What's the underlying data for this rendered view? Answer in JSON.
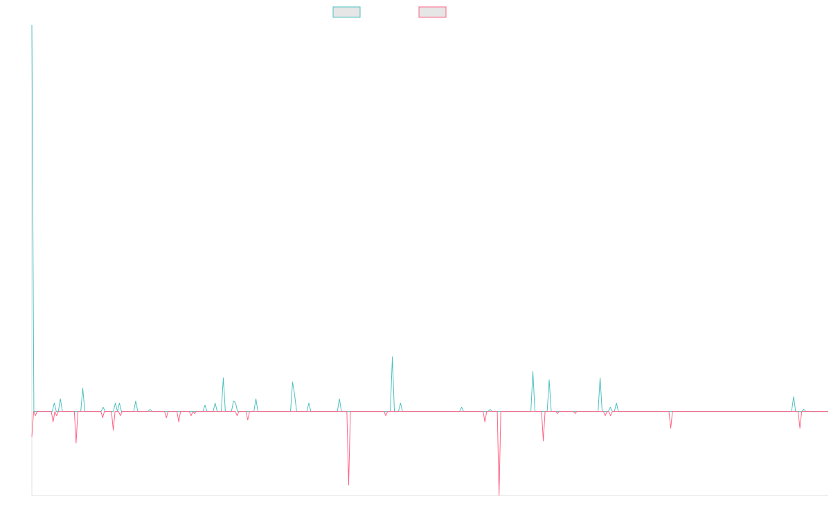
{
  "colors": {
    "series_a": "#4bc0c0",
    "series_b": "#ff6384",
    "legend_fill": "#e6e6e6",
    "axis": "#e0e0e0"
  },
  "chart_data": {
    "type": "line",
    "title": "",
    "xlabel": "",
    "ylabel": "",
    "legend": "top-center",
    "grid": false,
    "ylim": [
      -20,
      92
    ],
    "series": [
      {
        "values": [
          92,
          0,
          0,
          0,
          0,
          0,
          0,
          0,
          0,
          0,
          0,
          2,
          0,
          0,
          3,
          0,
          0,
          0,
          0,
          0,
          0,
          0,
          0,
          0,
          0,
          5.5,
          0,
          0,
          0,
          0,
          0,
          0,
          0,
          0,
          0,
          1,
          0,
          0,
          0,
          0,
          0,
          2,
          0,
          2,
          0,
          0,
          0,
          0,
          0,
          0,
          0,
          2.5,
          0,
          0,
          0,
          0,
          0,
          0,
          0.5,
          0,
          0,
          0,
          0,
          0,
          0,
          0,
          0,
          0,
          0,
          0,
          0,
          0,
          0,
          0,
          0,
          0,
          0,
          0,
          0,
          0,
          0,
          0,
          0,
          0,
          0,
          1.5,
          0,
          0,
          0,
          0,
          2,
          0,
          0,
          0,
          8,
          0,
          0,
          0,
          0,
          2.5,
          2,
          0,
          0,
          0,
          0,
          0,
          0,
          0,
          0,
          0,
          3,
          0,
          0,
          0,
          0,
          0,
          0,
          0,
          0,
          0,
          0,
          0,
          0,
          0,
          0,
          0,
          0,
          0,
          7,
          4,
          0,
          0,
          0,
          0,
          0,
          0,
          2,
          0,
          0,
          0,
          0,
          0,
          0,
          0,
          0,
          0,
          0,
          0,
          0,
          0,
          0,
          3,
          0,
          0,
          0,
          0,
          0,
          0,
          0,
          0,
          0,
          0,
          0,
          0,
          0,
          0,
          0,
          0,
          0,
          0,
          0,
          0,
          0,
          0,
          0,
          0,
          0,
          13,
          0,
          0,
          0,
          2,
          0,
          0,
          0,
          0,
          0,
          0,
          0,
          0,
          0,
          0,
          0,
          0,
          0,
          0,
          0,
          0,
          0,
          0,
          0,
          0,
          0,
          0,
          0,
          0,
          0,
          0,
          0,
          0,
          0,
          1,
          0,
          0,
          0,
          0,
          0,
          0,
          0,
          0,
          0,
          0,
          0,
          0,
          0,
          0.5,
          0,
          0,
          0,
          0,
          0,
          0,
          0,
          0,
          0,
          0,
          0,
          0,
          0,
          0,
          0,
          0,
          0,
          0,
          0,
          0,
          9.5,
          0,
          0,
          0,
          0,
          0,
          0,
          0,
          7.5,
          0,
          0,
          0,
          0,
          0,
          0,
          0,
          0,
          0,
          0,
          0,
          0,
          0,
          0,
          0,
          0,
          0,
          0,
          0,
          0,
          0,
          0,
          0,
          0,
          8,
          0,
          0,
          0,
          0,
          1,
          0,
          0,
          2,
          0,
          0,
          0,
          0,
          0,
          0,
          0,
          0,
          0,
          0,
          0,
          0,
          0,
          0,
          0,
          0,
          0,
          0,
          0,
          0,
          0,
          0,
          0,
          0,
          0,
          0,
          0,
          0,
          0,
          0,
          0,
          0,
          0,
          0,
          0,
          0,
          0,
          0,
          0,
          0,
          0,
          0,
          0,
          0,
          0,
          0,
          0,
          0,
          0,
          0,
          0,
          0,
          0,
          0,
          0,
          0,
          0,
          0,
          0,
          0,
          0,
          0,
          0,
          0,
          0,
          0,
          0,
          0,
          0,
          0,
          0,
          0,
          0,
          0,
          0,
          0,
          0,
          0,
          0,
          0,
          0,
          0,
          0,
          0,
          0,
          0,
          3.5,
          0,
          0,
          0,
          0,
          0.5,
          0,
          0,
          0,
          0,
          0,
          0,
          0,
          0,
          0,
          0,
          0,
          0
        ]
      },
      {
        "values": [
          -6,
          0,
          -1,
          0,
          0,
          0,
          0,
          0,
          0,
          0,
          0,
          0,
          -2.5,
          0,
          -1,
          0,
          0,
          0,
          0,
          0,
          0,
          0,
          0,
          0,
          0,
          -7.5,
          0,
          0,
          0,
          0,
          0,
          0,
          0,
          0,
          0,
          0,
          0,
          0,
          0,
          0,
          -1.5,
          0,
          0,
          0,
          0,
          0,
          -4.5,
          0,
          0,
          0,
          -1,
          0,
          0,
          0,
          0,
          0,
          0,
          0,
          0,
          0,
          0,
          0,
          0,
          0,
          0,
          0,
          0,
          0,
          0,
          0,
          0,
          0,
          0,
          0,
          0,
          0,
          -1.5,
          0,
          0,
          0,
          0,
          0,
          0,
          -2.5,
          0,
          0,
          0,
          0,
          0,
          0,
          -1,
          0,
          -0.5,
          0,
          0,
          0,
          0,
          0,
          0,
          0,
          0,
          0,
          0,
          0,
          0,
          0,
          0,
          0,
          0,
          0,
          0,
          0,
          0,
          0,
          0,
          0,
          -1,
          0,
          0,
          0,
          0,
          0,
          -2,
          0,
          0,
          0,
          0,
          0,
          0,
          0,
          0,
          0,
          0,
          0,
          0,
          0,
          0,
          0,
          0,
          0,
          0,
          0,
          0,
          0,
          0,
          0,
          0,
          0,
          0,
          0,
          0,
          0,
          0,
          0,
          0,
          0,
          0,
          0,
          0,
          0,
          0,
          0,
          0,
          0,
          0,
          0,
          0,
          0,
          0,
          0,
          0,
          0,
          0,
          0,
          0,
          0,
          0,
          0,
          0,
          -17.5,
          0,
          0,
          0,
          0,
          0,
          0,
          0,
          0,
          0,
          0,
          0,
          0,
          0,
          0,
          0,
          0,
          0,
          0,
          0,
          0,
          -1,
          0,
          0,
          0,
          0,
          0,
          0,
          0,
          0,
          0,
          0,
          0,
          0,
          0,
          0,
          0,
          0,
          0,
          0,
          0,
          0,
          0,
          0,
          0,
          0,
          0,
          0,
          0,
          0,
          0,
          0,
          0,
          0,
          0,
          0,
          0,
          0,
          0,
          0,
          0,
          0,
          0,
          0,
          0,
          0,
          0,
          0,
          0,
          0,
          0,
          0,
          0,
          0,
          0,
          0,
          0,
          -2.5,
          0,
          0,
          0,
          0,
          0,
          0,
          0,
          -20,
          0,
          0,
          0,
          0,
          0,
          0,
          0,
          0,
          0,
          0,
          0,
          0,
          0,
          0,
          0,
          0,
          0,
          0,
          0,
          0,
          0,
          0,
          0,
          0,
          -7,
          0,
          0,
          0,
          0,
          0,
          0,
          0,
          -0.5,
          0,
          0,
          0,
          0,
          0,
          0,
          0,
          0,
          0,
          -0.5,
          0,
          0,
          0,
          0,
          0,
          0,
          0,
          0,
          0,
          0,
          0,
          0,
          0,
          0,
          0,
          0,
          -1,
          0,
          0,
          -1,
          0,
          0,
          0,
          0,
          0,
          0,
          0,
          0,
          0,
          0,
          0,
          0,
          0,
          0,
          0,
          0,
          0,
          0,
          0,
          0,
          0,
          0,
          0,
          0,
          0,
          0,
          0,
          0,
          0,
          0,
          0,
          0,
          0,
          -4,
          0,
          0,
          0,
          0,
          0,
          0,
          0,
          0,
          0,
          0,
          0,
          0,
          0,
          0,
          0,
          0,
          0,
          0,
          0,
          0,
          0,
          0,
          0,
          0,
          0,
          0,
          0,
          0,
          0,
          0,
          0,
          0,
          0,
          0,
          0,
          0,
          0,
          0,
          0,
          0,
          0,
          0,
          0,
          0,
          0,
          0,
          0,
          0,
          0,
          0,
          0,
          0,
          0,
          0,
          0,
          0,
          0,
          0,
          0,
          0,
          0,
          0,
          0,
          0,
          0,
          0,
          0,
          0,
          0,
          0,
          0,
          0,
          -4,
          0,
          0,
          0,
          0,
          0,
          0,
          0,
          0,
          0,
          0,
          0,
          0,
          0,
          0,
          0,
          0
        ]
      }
    ]
  }
}
